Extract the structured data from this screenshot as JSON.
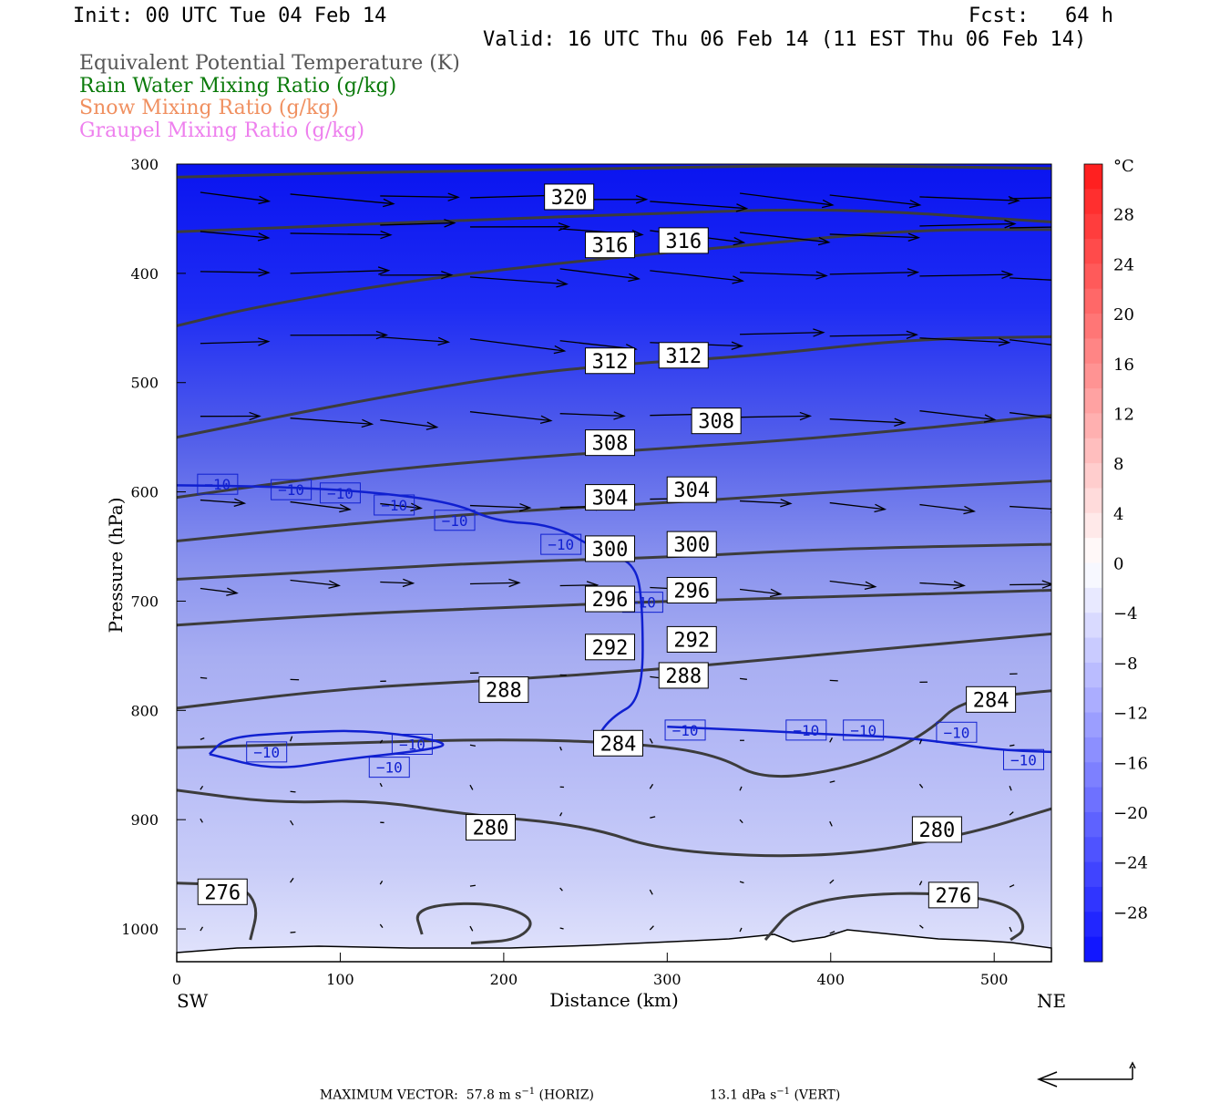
{
  "header": {
    "init": "Init: 00 UTC Tue 04 Feb 14",
    "fcst": "Fcst:   64 h",
    "valid": "Valid: 16 UTC Thu 06 Feb 14 (11 EST Thu 06 Feb 14)"
  },
  "fields": [
    {
      "label": "Equivalent Potential Temperature (K)",
      "color": "#555555"
    },
    {
      "label": "Rain Water Mixing Ratio (g/kg)",
      "color": "#0a7a0a"
    },
    {
      "label": "Snow Mixing Ratio (g/kg)",
      "color": "#f09060"
    },
    {
      "label": "Graupel Mixing Ratio (g/kg)",
      "color": "#ee80ee"
    }
  ],
  "chart_data": {
    "type": "contour cross-section",
    "xlabel": "Distance (km)",
    "ylabel": "Pressure (hPa)",
    "xlim": [
      0,
      535
    ],
    "ylim": [
      1030,
      300
    ],
    "x_ticks": [
      0,
      100,
      200,
      300,
      400,
      500
    ],
    "y_ticks": [
      300,
      400,
      500,
      600,
      700,
      800,
      900,
      1000
    ],
    "left_end": "SW",
    "right_end": "NE",
    "theta_e_contours": [
      {
        "level": 320,
        "points": [
          [
            0,
            312
          ],
          [
            100,
            308
          ],
          [
            200,
            306
          ],
          [
            300,
            303
          ],
          [
            400,
            301
          ],
          [
            535,
            304
          ]
        ],
        "labels": [
          [
            240,
            330
          ]
        ]
      },
      {
        "level": 316,
        "points": [
          [
            0,
            362
          ],
          [
            100,
            356
          ],
          [
            200,
            350
          ],
          [
            280,
            346
          ],
          [
            400,
            340
          ],
          [
            535,
            353
          ]
        ],
        "labels": [
          [
            265,
            374
          ],
          [
            310,
            370
          ]
        ]
      },
      {
        "level": 312,
        "points": [
          [
            0,
            448
          ],
          [
            50,
            430
          ],
          [
            150,
            405
          ],
          [
            250,
            388
          ],
          [
            350,
            374
          ],
          [
            450,
            360
          ],
          [
            535,
            360
          ]
        ],
        "labels": [
          [
            265,
            480
          ],
          [
            310,
            475
          ]
        ]
      },
      {
        "level": 308,
        "points": [
          [
            0,
            550
          ],
          [
            100,
            520
          ],
          [
            200,
            494
          ],
          [
            280,
            482
          ],
          [
            350,
            476
          ],
          [
            450,
            460
          ],
          [
            535,
            458
          ]
        ],
        "labels": [
          [
            265,
            555
          ],
          [
            330,
            535
          ]
        ]
      },
      {
        "level": 304,
        "points": [
          [
            0,
            605
          ],
          [
            100,
            584
          ],
          [
            200,
            570
          ],
          [
            300,
            560
          ],
          [
            400,
            550
          ],
          [
            535,
            530
          ]
        ],
        "labels": [
          [
            265,
            605
          ],
          [
            315,
            598
          ]
        ]
      },
      {
        "level": 300,
        "points": [
          [
            0,
            645
          ],
          [
            100,
            630
          ],
          [
            200,
            618
          ],
          [
            300,
            610
          ],
          [
            400,
            600
          ],
          [
            535,
            590
          ]
        ],
        "labels": [
          [
            265,
            652
          ],
          [
            315,
            648
          ]
        ]
      },
      {
        "level": 296,
        "points": [
          [
            0,
            680
          ],
          [
            100,
            672
          ],
          [
            200,
            664
          ],
          [
            300,
            660
          ],
          [
            400,
            652
          ],
          [
            535,
            648
          ]
        ],
        "labels": [
          [
            265,
            698
          ],
          [
            315,
            690
          ]
        ]
      },
      {
        "level": 292,
        "points": [
          [
            0,
            722
          ],
          [
            100,
            712
          ],
          [
            200,
            706
          ],
          [
            300,
            700
          ],
          [
            400,
            696
          ],
          [
            535,
            690
          ]
        ],
        "labels": [
          [
            265,
            742
          ],
          [
            315,
            735
          ]
        ]
      },
      {
        "level": 288,
        "points": [
          [
            0,
            798
          ],
          [
            100,
            780
          ],
          [
            200,
            772
          ],
          [
            300,
            762
          ],
          [
            400,
            748
          ],
          [
            535,
            730
          ]
        ],
        "labels": [
          [
            200,
            781
          ],
          [
            310,
            768
          ]
        ]
      },
      {
        "level": 284,
        "points": [
          [
            0,
            834
          ],
          [
            100,
            830
          ],
          [
            200,
            826
          ],
          [
            280,
            830
          ],
          [
            330,
            840
          ],
          [
            360,
            865
          ],
          [
            420,
            850
          ],
          [
            460,
            820
          ],
          [
            480,
            790
          ],
          [
            535,
            782
          ]
        ],
        "labels": [
          [
            270,
            830
          ],
          [
            498,
            790
          ]
        ]
      },
      {
        "level": 280,
        "points": [
          [
            0,
            873
          ],
          [
            60,
            885
          ],
          [
            120,
            882
          ],
          [
            175,
            895
          ],
          [
            250,
            905
          ],
          [
            300,
            930
          ],
          [
            400,
            935
          ],
          [
            480,
            915
          ],
          [
            535,
            890
          ]
        ],
        "labels": [
          [
            192,
            907
          ],
          [
            465,
            909
          ]
        ]
      },
      {
        "level": 276,
        "points": [
          [
            0,
            958
          ],
          [
            40,
            960
          ],
          [
            50,
            980
          ],
          [
            45,
            1010
          ]
        ],
        "labels": [
          [
            28,
            966
          ]
        ]
      },
      {
        "level": 276,
        "points": [
          [
            360,
            1010
          ],
          [
            380,
            975
          ],
          [
            450,
            965
          ],
          [
            510,
            975
          ],
          [
            520,
            1000
          ],
          [
            510,
            1010
          ]
        ],
        "labels": [
          [
            475,
            969
          ]
        ]
      },
      {
        "level": 276,
        "points": [
          [
            150,
            1005
          ],
          [
            145,
            980
          ],
          [
            190,
            975
          ],
          [
            220,
            990
          ],
          [
            210,
            1010
          ],
          [
            180,
            1013
          ]
        ],
        "labels": []
      }
    ],
    "temperature_minus10_contour": {
      "level": -10,
      "upper": [
        [
          0,
          594
        ],
        [
          60,
          595
        ],
        [
          120,
          600
        ],
        [
          170,
          610
        ],
        [
          195,
          627
        ],
        [
          230,
          630
        ],
        [
          260,
          655
        ],
        [
          280,
          665
        ],
        [
          285,
          700
        ],
        [
          285,
          790
        ],
        [
          265,
          807
        ],
        [
          255,
          830
        ]
      ],
      "lower": [
        [
          20,
          840
        ],
        [
          60,
          855
        ],
        [
          100,
          845
        ],
        [
          150,
          837
        ],
        [
          170,
          830
        ],
        [
          120,
          818
        ],
        [
          70,
          820
        ],
        [
          30,
          825
        ],
        [
          20,
          840
        ]
      ],
      "east": [
        [
          300,
          815
        ],
        [
          350,
          818
        ],
        [
          400,
          822
        ],
        [
          450,
          825
        ],
        [
          500,
          836
        ],
        [
          535,
          838
        ]
      ],
      "labels": [
        [
          25,
          593
        ],
        [
          70,
          598
        ],
        [
          100,
          601
        ],
        [
          133,
          612
        ],
        [
          170,
          626
        ],
        [
          235,
          648
        ],
        [
          285,
          701
        ],
        [
          55,
          838
        ],
        [
          130,
          852
        ],
        [
          144,
          831
        ],
        [
          311,
          818
        ],
        [
          385,
          818
        ],
        [
          420,
          818
        ],
        [
          477,
          820
        ],
        [
          518,
          845
        ]
      ]
    },
    "temperature_colorbar": {
      "unit": "°C",
      "min": -32,
      "max": 32,
      "step": 2,
      "labels": [
        "28",
        "24",
        "20",
        "16",
        "12",
        "8",
        "4",
        "0",
        "−4",
        "−8",
        "−12",
        "−16",
        "−20",
        "−24",
        "−28"
      ],
      "label_values": [
        28,
        24,
        20,
        16,
        12,
        8,
        4,
        0,
        -4,
        -8,
        -12,
        -16,
        -20,
        -24,
        -28
      ]
    },
    "wind_vectors_note": "Horizontal (m/s) and vertical (dPa/s) circulation vectors; westerly flow strongest aloft"
  },
  "footer": {
    "max_vector_label": "MAXIMUM VECTOR:",
    "horiz_value": "57.8",
    "horiz_unit_pre": "m s",
    "horiz_unit_exp": "−1",
    "horiz_tag": "(HORIZ)",
    "vert_value": "13.1",
    "vert_unit_pre": "dPa s",
    "vert_unit_exp": "−1",
    "vert_tag": "(VERT)"
  }
}
